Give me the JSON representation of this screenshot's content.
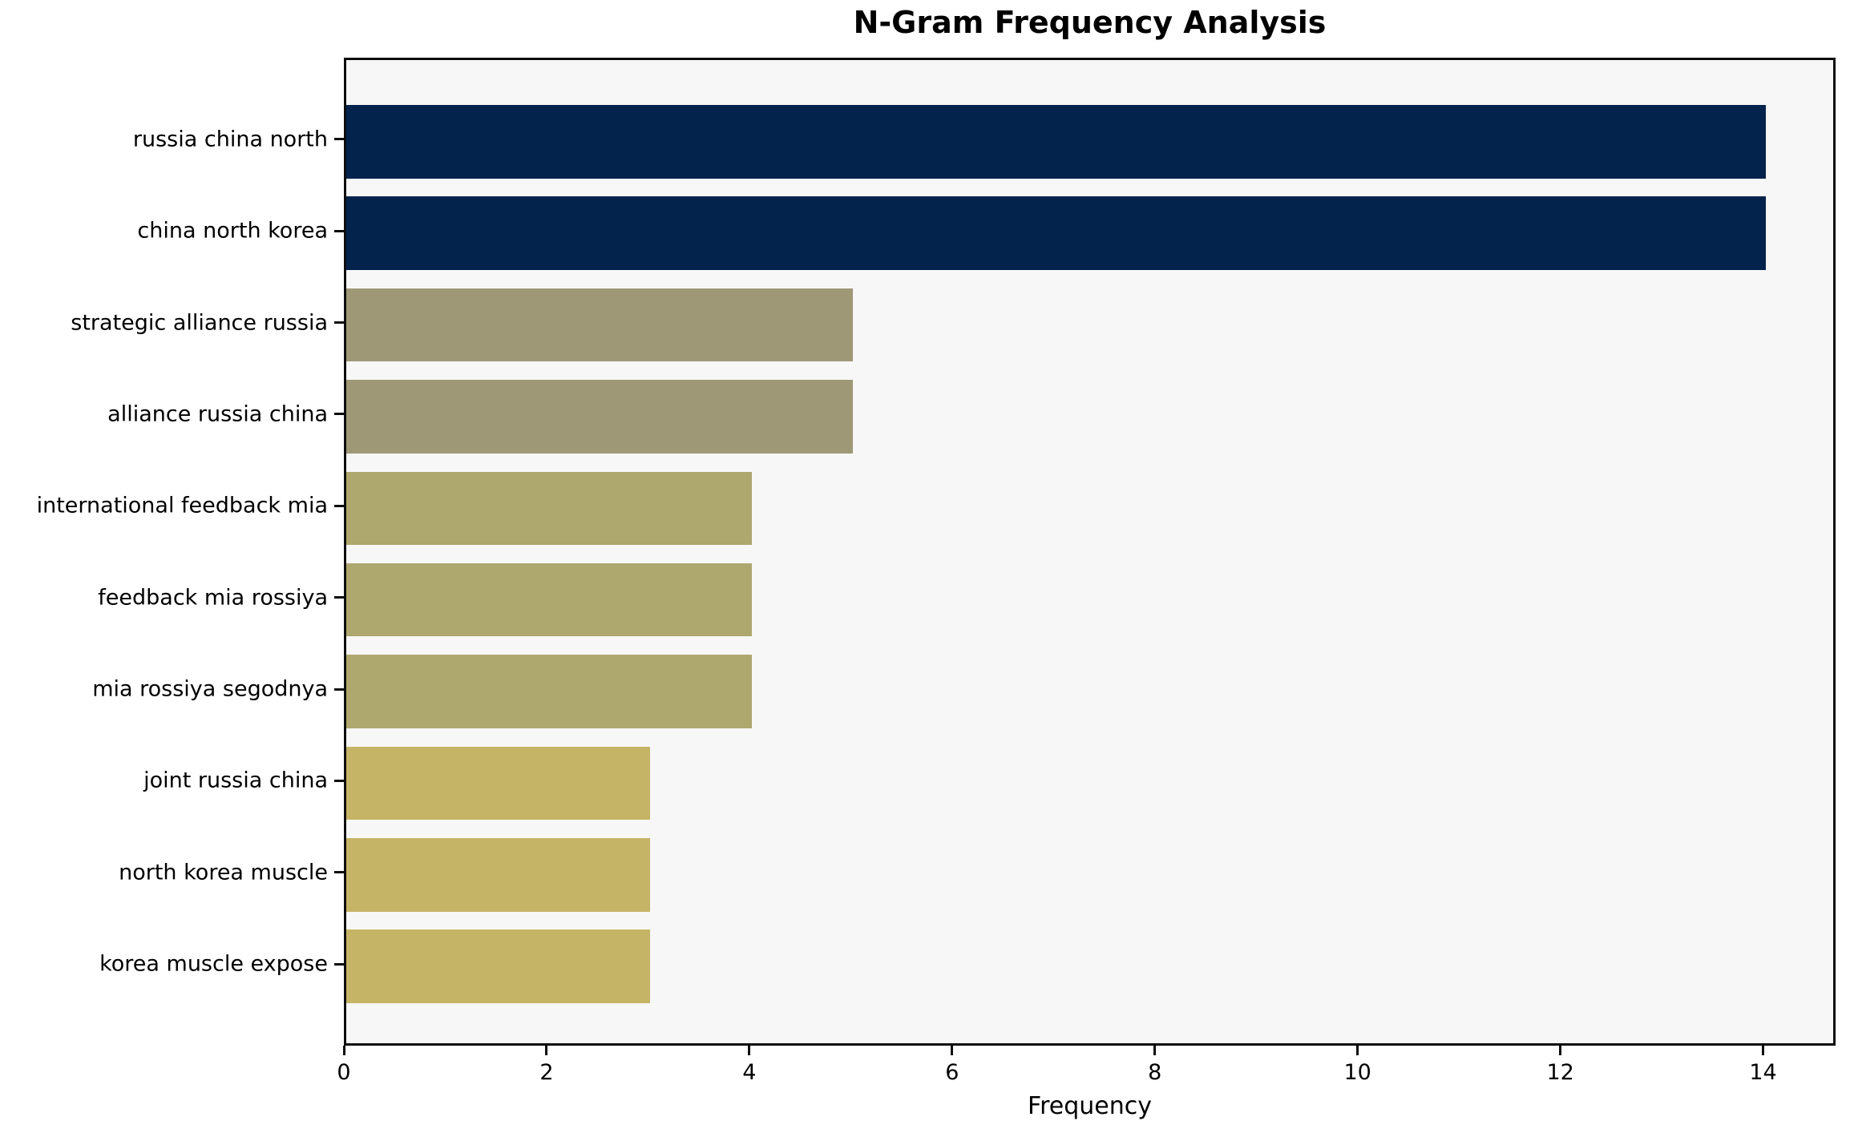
{
  "chart_data": {
    "type": "bar",
    "orientation": "horizontal",
    "title": "N-Gram Frequency Analysis",
    "xlabel": "Frequency",
    "ylabel": "",
    "categories": [
      "russia china north",
      "china north korea",
      "strategic alliance russia",
      "alliance russia china",
      "international feedback mia",
      "feedback mia rossiya",
      "mia rossiya segodnya",
      "joint russia china",
      "north korea muscle",
      "korea muscle expose"
    ],
    "values": [
      14,
      14,
      5,
      5,
      4,
      4,
      4,
      3,
      3,
      3
    ],
    "bar_colors": [
      "#03224c",
      "#03224c",
      "#9e9876",
      "#9e9876",
      "#aea76e",
      "#aea76e",
      "#aea76e",
      "#c6b466",
      "#c6b466",
      "#c6b466"
    ],
    "xticks": [
      0,
      2,
      4,
      6,
      8,
      10,
      12,
      14
    ],
    "xlim": [
      0,
      14.715
    ],
    "grid": false,
    "legend": null,
    "plot_background": "#f7f7f7",
    "figure_background": "#ffffff",
    "spine_color": "#0d0d0d",
    "text_color": "#000000"
  }
}
